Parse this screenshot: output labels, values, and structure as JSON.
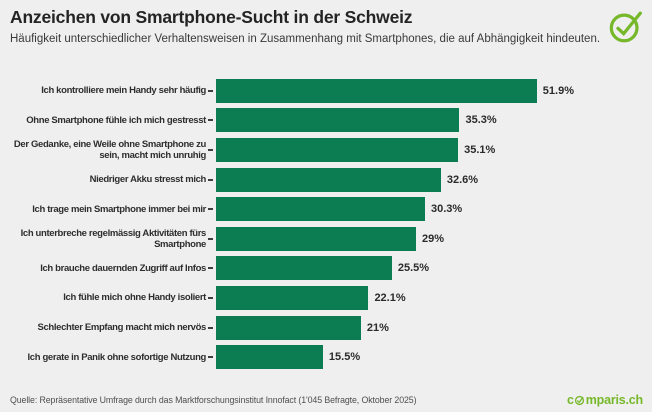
{
  "header": {
    "title": "Anzeichen von Smartphone-Sucht in der Schweiz",
    "subtitle": "Häufigkeit unterschiedlicher Verhaltensweisen in Zusammenhang mit Smartphones, die auf Abhängigkeit hindeuten."
  },
  "chart_data": {
    "type": "bar",
    "orientation": "horizontal",
    "title": "Anzeichen von Smartphone-Sucht in der Schweiz",
    "subtitle": "Häufigkeit unterschiedlicher Verhaltensweisen in Zusammenhang mit Smartphones, die auf Abhängigkeit hindeuten.",
    "categories": [
      "Ich kontrolliere mein Handy sehr häufig",
      "Ohne Smartphone fühle ich mich gestresst",
      "Der Gedanke, eine Weile ohne Smartphone zu\nsein, macht mich unruhig",
      "Niedriger Akku stresst mich",
      "Ich trage mein Smartphone immer bei mir",
      "Ich unterbreche regelmässig Aktivitäten fürs\nSmartphone",
      "Ich brauche dauernden Zugriff auf Infos",
      "Ich fühle mich ohne Handy isoliert",
      "Schlechter Empfang macht mich nervös",
      "Ich gerate in Panik ohne sofortige Nutzung"
    ],
    "values": [
      51.9,
      35.3,
      35.1,
      32.6,
      30.3,
      29,
      25.5,
      22.1,
      21,
      15.5
    ],
    "value_labels": [
      "51.9%",
      "35.3%",
      "35.1%",
      "32.6%",
      "30.3%",
      "29%",
      "25.5%",
      "22.1%",
      "21%",
      "15.5%"
    ],
    "xlabel": "",
    "ylabel": "",
    "xlim": [
      0,
      51.9
    ],
    "grid": false,
    "legend": false,
    "bar_color": "#0c7c52"
  },
  "footer": {
    "source": "Quelle: Repräsentative Umfrage durch das Marktforschungsinstitut Innofact (1'045 Befragte, Oktober 2025)",
    "brand": "comparis.ch"
  },
  "colors": {
    "background": "#efefef",
    "bar_green": "#0c7c52",
    "brand_green": "#76b82a",
    "text_dark": "#2b2b2b",
    "text_muted": "#4f4f4f"
  }
}
